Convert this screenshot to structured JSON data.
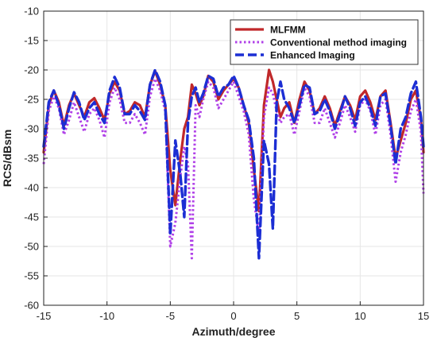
{
  "chart_data": {
    "type": "line",
    "xlabel": "Azimuth/degree",
    "ylabel": "RCS/dBsm",
    "xlim": [
      -15,
      15
    ],
    "ylim": [
      -60,
      -10
    ],
    "xticks": [
      -15,
      -10,
      -5,
      0,
      5,
      10,
      15
    ],
    "yticks": [
      -60,
      -55,
      -50,
      -45,
      -40,
      -35,
      -30,
      -25,
      -20,
      -15,
      -10
    ],
    "grid": true,
    "legend_position": "top-right",
    "series": [
      {
        "name": "MLFMM",
        "color": "#c0282a",
        "style": "solid",
        "x": [
          -15,
          -14.6,
          -14.2,
          -13.8,
          -13.4,
          -13.0,
          -12.6,
          -12.2,
          -11.8,
          -11.4,
          -11.0,
          -10.6,
          -10.2,
          -9.8,
          -9.4,
          -9.0,
          -8.6,
          -8.2,
          -7.8,
          -7.4,
          -7.0,
          -6.6,
          -6.2,
          -5.8,
          -5.4,
          -5.0,
          -4.6,
          -4.2,
          -3.9,
          -3.6,
          -3.3,
          -3.0,
          -2.7,
          -2.4,
          -2.0,
          -1.6,
          -1.2,
          -0.8,
          -0.4,
          0.0,
          0.4,
          0.8,
          1.2,
          1.6,
          2.0,
          2.4,
          2.8,
          3.1,
          3.4,
          3.7,
          4.0,
          4.4,
          4.8,
          5.2,
          5.6,
          6.0,
          6.4,
          6.8,
          7.2,
          7.6,
          8.0,
          8.4,
          8.8,
          9.2,
          9.6,
          10.0,
          10.4,
          10.8,
          11.2,
          11.6,
          12.0,
          12.4,
          12.8,
          13.2,
          13.6,
          14.0,
          14.4,
          14.8,
          15.0
        ],
        "y": [
          -34,
          -26,
          -23.5,
          -25.5,
          -29.5,
          -26,
          -24,
          -26,
          -28,
          -25.5,
          -24.8,
          -26.5,
          -28.5,
          -24,
          -22,
          -23.5,
          -27.5,
          -27,
          -25.5,
          -26,
          -28,
          -22.5,
          -20.2,
          -22.5,
          -26,
          -37,
          -43,
          -35,
          -30,
          -28,
          -22.5,
          -24,
          -26,
          -24.5,
          -21,
          -22,
          -25,
          -23.5,
          -22.5,
          -21.5,
          -23,
          -26,
          -29,
          -37,
          -44,
          -26,
          -20,
          -22,
          -25,
          -28,
          -26.5,
          -25.5,
          -29,
          -25,
          -22,
          -23.5,
          -27.5,
          -26.5,
          -24.5,
          -26.5,
          -29.5,
          -27,
          -24.5,
          -26,
          -28.5,
          -24.5,
          -23.5,
          -25.5,
          -28.5,
          -24.5,
          -23.5,
          -29,
          -35,
          -32,
          -29,
          -25,
          -23.5,
          -28.5,
          -34
        ]
      },
      {
        "name": "Conventional method imaging",
        "color": "#b040e8",
        "style": "dotted",
        "x": [
          -15,
          -14.6,
          -14.2,
          -13.8,
          -13.4,
          -13.0,
          -12.6,
          -12.2,
          -11.8,
          -11.4,
          -11.0,
          -10.6,
          -10.2,
          -9.8,
          -9.4,
          -9.0,
          -8.6,
          -8.2,
          -7.8,
          -7.4,
          -7.0,
          -6.6,
          -6.2,
          -5.8,
          -5.4,
          -5.0,
          -4.6,
          -4.2,
          -3.9,
          -3.6,
          -3.3,
          -3.0,
          -2.7,
          -2.4,
          -2.0,
          -1.6,
          -1.2,
          -0.8,
          -0.4,
          0.0,
          0.4,
          0.8,
          1.2,
          1.6,
          2.0,
          2.4,
          2.8,
          3.1,
          3.4,
          3.7,
          4.0,
          4.4,
          4.8,
          5.2,
          5.6,
          6.0,
          6.4,
          6.8,
          7.2,
          7.6,
          8.0,
          8.4,
          8.8,
          9.2,
          9.6,
          10.0,
          10.4,
          10.8,
          11.2,
          11.6,
          12.0,
          12.4,
          12.8,
          13.2,
          13.6,
          14.0,
          14.4,
          14.8,
          15.0
        ],
        "y": [
          -36,
          -27,
          -24.5,
          -26.5,
          -31,
          -28.5,
          -25.5,
          -28,
          -30.5,
          -27.5,
          -26.5,
          -28.5,
          -31.5,
          -25.5,
          -23,
          -25,
          -29,
          -29,
          -27.5,
          -29,
          -31,
          -24.5,
          -21.5,
          -23.5,
          -27,
          -50,
          -46,
          -38,
          -33,
          -36,
          -52,
          -26,
          -28,
          -25,
          -22,
          -23,
          -26.5,
          -25,
          -23.5,
          -22,
          -24.5,
          -27,
          -31,
          -42,
          -48,
          -28,
          -23,
          -24,
          -27,
          -29,
          -28,
          -27.5,
          -31,
          -27,
          -23,
          -24.5,
          -29,
          -29,
          -26.5,
          -29,
          -31.5,
          -29,
          -26,
          -28,
          -30.5,
          -26,
          -25,
          -27,
          -31,
          -26,
          -25,
          -31,
          -39,
          -34,
          -31,
          -27,
          -25,
          -30.5,
          -41
        ]
      },
      {
        "name": "Enhanced Imaging",
        "color": "#1c2ed4",
        "style": "dashed",
        "x": [
          -15,
          -14.6,
          -14.2,
          -13.8,
          -13.4,
          -13.0,
          -12.6,
          -12.2,
          -11.8,
          -11.4,
          -11.0,
          -10.6,
          -10.2,
          -9.8,
          -9.4,
          -9.0,
          -8.6,
          -8.2,
          -7.8,
          -7.4,
          -7.0,
          -6.6,
          -6.2,
          -5.8,
          -5.4,
          -5.0,
          -4.6,
          -4.2,
          -3.9,
          -3.6,
          -3.3,
          -3.0,
          -2.7,
          -2.4,
          -2.0,
          -1.6,
          -1.2,
          -0.8,
          -0.4,
          0.0,
          0.4,
          0.8,
          1.2,
          1.6,
          2.0,
          2.4,
          2.8,
          3.1,
          3.4,
          3.7,
          4.0,
          4.4,
          4.8,
          5.2,
          5.6,
          6.0,
          6.4,
          6.8,
          7.2,
          7.6,
          8.0,
          8.4,
          8.8,
          9.2,
          9.6,
          10.0,
          10.4,
          10.8,
          11.2,
          11.6,
          12.0,
          12.4,
          12.8,
          13.2,
          13.6,
          14.0,
          14.4,
          14.8,
          15.0
        ],
        "y": [
          -33,
          -25.5,
          -23.5,
          -26,
          -30,
          -26.5,
          -23.8,
          -25.5,
          -28.5,
          -26.5,
          -25.5,
          -27.5,
          -29,
          -23.5,
          -21.2,
          -23,
          -27.5,
          -27.5,
          -26,
          -27,
          -28.5,
          -22.5,
          -20,
          -22,
          -26,
          -48,
          -32,
          -38,
          -45,
          -29,
          -24.5,
          -23,
          -25.5,
          -24,
          -21,
          -21.5,
          -24.5,
          -23,
          -22.5,
          -21,
          -23,
          -26,
          -28.5,
          -35,
          -52,
          -32,
          -36,
          -47,
          -25.5,
          -22,
          -25,
          -26.5,
          -29,
          -26,
          -22.5,
          -23,
          -27.5,
          -27,
          -25,
          -27,
          -30,
          -27.5,
          -24.5,
          -26.5,
          -29.5,
          -25.5,
          -24.5,
          -26.5,
          -29.5,
          -24.5,
          -24,
          -29.5,
          -36,
          -30,
          -28,
          -24,
          -22,
          -28,
          -33
        ]
      }
    ]
  }
}
